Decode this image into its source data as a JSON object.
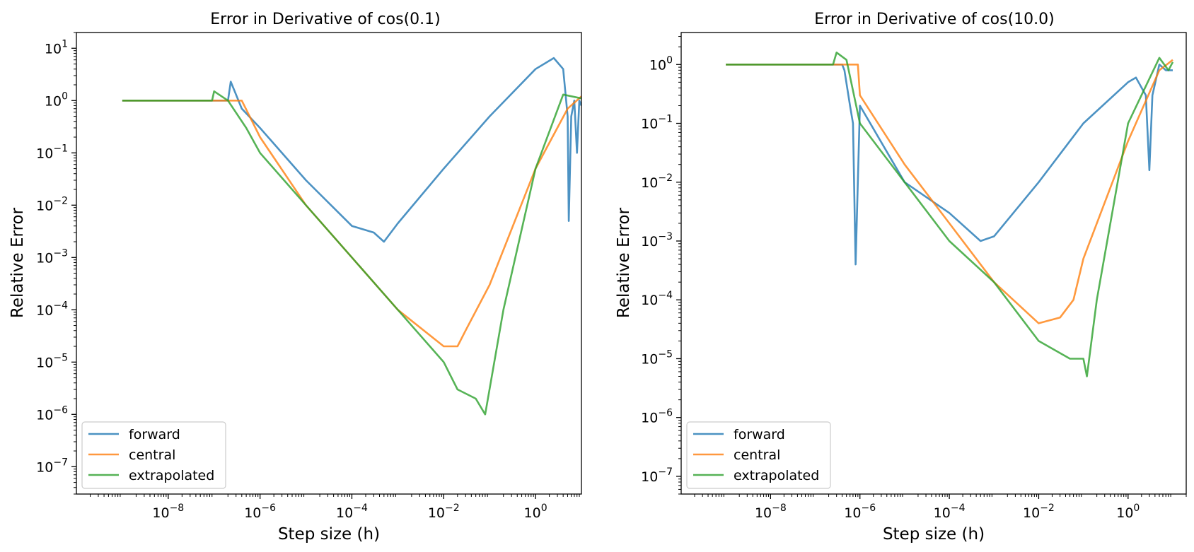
{
  "chart_data": [
    {
      "type": "line",
      "title": "Error in Derivative of cos(0.1)",
      "xlabel": "Step size (h)",
      "ylabel": "Relative Error",
      "xscale": "log",
      "yscale": "log",
      "xlim": [
        1e-10,
        10
      ],
      "ylim": [
        3e-08,
        20
      ],
      "xticks": [
        {
          "exp": -8,
          "label": "10",
          "sup": "−8"
        },
        {
          "exp": -6,
          "label": "10",
          "sup": "−6"
        },
        {
          "exp": -4,
          "label": "10",
          "sup": "−4"
        },
        {
          "exp": -2,
          "label": "10",
          "sup": "−2"
        },
        {
          "exp": 0,
          "label": "10",
          "sup": "0"
        }
      ],
      "yticks": [
        {
          "exp": 1,
          "label": "10",
          "sup": "1"
        },
        {
          "exp": 0,
          "label": "10",
          "sup": "0"
        },
        {
          "exp": -1,
          "label": "10",
          "sup": "−1"
        },
        {
          "exp": -2,
          "label": "10",
          "sup": "−2"
        },
        {
          "exp": -3,
          "label": "10",
          "sup": "−3"
        },
        {
          "exp": -4,
          "label": "10",
          "sup": "−4"
        },
        {
          "exp": -5,
          "label": "10",
          "sup": "−5"
        },
        {
          "exp": -6,
          "label": "10",
          "sup": "−6"
        },
        {
          "exp": -7,
          "label": "10",
          "sup": "−7"
        }
      ],
      "legend_position": "lower-left",
      "series": [
        {
          "name": "forward",
          "color": "#1f77b4",
          "x": [
            1e-09,
            2e-07,
            2.3e-07,
            4e-07,
            1e-06,
            1e-05,
            0.0001,
            0.0003,
            0.0005,
            0.001,
            0.01,
            0.1,
            1,
            2.5,
            4,
            5,
            5.3,
            6,
            7,
            8,
            9,
            10
          ],
          "y": [
            1,
            1,
            2.3,
            0.7,
            0.3,
            0.03,
            0.004,
            0.003,
            0.002,
            0.0045,
            0.05,
            0.5,
            4,
            6.5,
            4,
            0.5,
            0.005,
            0.5,
            1,
            0.1,
            1,
            0.8
          ]
        },
        {
          "name": "central",
          "color": "#ff7f0e",
          "x": [
            1e-09,
            4e-07,
            1e-06,
            1e-05,
            0.0001,
            0.001,
            0.01,
            0.02,
            0.03,
            0.1,
            1,
            5,
            10
          ],
          "y": [
            1,
            1,
            0.2,
            0.01,
            0.001,
            0.0001,
            2e-05,
            2e-05,
            4e-05,
            0.0003,
            0.05,
            0.7,
            1.2
          ]
        },
        {
          "name": "extrapolated",
          "color": "#2ca02c",
          "x": [
            1e-09,
            9e-08,
            1e-07,
            2e-07,
            5e-07,
            1e-06,
            1e-05,
            0.0001,
            0.001,
            0.01,
            0.02,
            0.05,
            0.08,
            0.2,
            1,
            4,
            10
          ],
          "y": [
            1,
            1,
            1.5,
            1,
            0.3,
            0.1,
            0.01,
            0.001,
            0.0001,
            1e-05,
            3e-06,
            2e-06,
            1e-06,
            0.0001,
            0.05,
            1.3,
            1.1
          ]
        }
      ]
    },
    {
      "type": "line",
      "title": "Error in Derivative of cos(10.0)",
      "xlabel": "Step size (h)",
      "ylabel": "Relative Error",
      "xscale": "log",
      "yscale": "log",
      "xlim": [
        1e-10,
        20
      ],
      "ylim": [
        5e-08,
        3.5
      ],
      "xticks": [
        {
          "exp": -8,
          "label": "10",
          "sup": "−8"
        },
        {
          "exp": -6,
          "label": "10",
          "sup": "−6"
        },
        {
          "exp": -4,
          "label": "10",
          "sup": "−4"
        },
        {
          "exp": -2,
          "label": "10",
          "sup": "−2"
        },
        {
          "exp": 0,
          "label": "10",
          "sup": "0"
        }
      ],
      "yticks": [
        {
          "exp": 0,
          "label": "10",
          "sup": "0"
        },
        {
          "exp": -1,
          "label": "10",
          "sup": "−1"
        },
        {
          "exp": -2,
          "label": "10",
          "sup": "−2"
        },
        {
          "exp": -3,
          "label": "10",
          "sup": "−3"
        },
        {
          "exp": -4,
          "label": "10",
          "sup": "−4"
        },
        {
          "exp": -5,
          "label": "10",
          "sup": "−5"
        },
        {
          "exp": -6,
          "label": "10",
          "sup": "−6"
        },
        {
          "exp": -7,
          "label": "10",
          "sup": "−7"
        }
      ],
      "legend_position": "lower-left",
      "series": [
        {
          "name": "forward",
          "color": "#1f77b4",
          "x": [
            1e-09,
            4e-07,
            4.5e-07,
            6e-07,
            7e-07,
            8e-07,
            1e-06,
            1e-05,
            0.0001,
            0.0005,
            0.001,
            0.01,
            0.1,
            1,
            1.5,
            2.5,
            3,
            3.5,
            5,
            7,
            10
          ],
          "y": [
            1,
            1,
            0.8,
            0.2,
            0.1,
            0.0004,
            0.2,
            0.01,
            0.003,
            0.001,
            0.0012,
            0.01,
            0.1,
            0.5,
            0.6,
            0.3,
            0.016,
            0.3,
            1,
            0.8,
            0.8
          ]
        },
        {
          "name": "central",
          "color": "#ff7f0e",
          "x": [
            1e-09,
            9e-07,
            1e-06,
            1e-05,
            0.0001,
            0.001,
            0.01,
            0.03,
            0.06,
            0.1,
            1,
            5,
            10
          ],
          "y": [
            1,
            1,
            0.3,
            0.02,
            0.002,
            0.0002,
            4e-05,
            5e-05,
            0.0001,
            0.0005,
            0.05,
            0.8,
            1.2
          ]
        },
        {
          "name": "extrapolated",
          "color": "#2ca02c",
          "x": [
            1e-09,
            2.5e-07,
            3e-07,
            5e-07,
            1e-06,
            1e-05,
            0.0001,
            0.001,
            0.01,
            0.05,
            0.1,
            0.12,
            0.2,
            1,
            5,
            8,
            10
          ],
          "y": [
            1,
            1,
            1.6,
            1.2,
            0.1,
            0.01,
            0.001,
            0.0002,
            2e-05,
            1e-05,
            1e-05,
            5e-06,
            0.0001,
            0.1,
            1.3,
            0.8,
            1.1
          ]
        }
      ]
    }
  ]
}
